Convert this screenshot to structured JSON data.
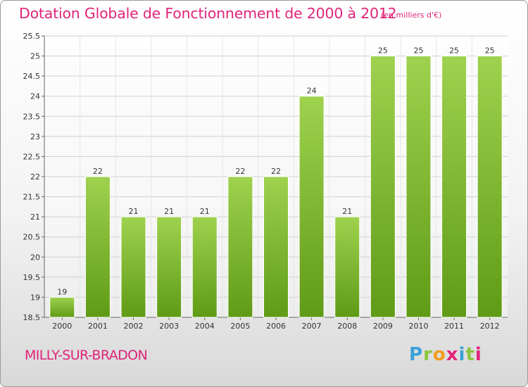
{
  "header": {
    "title": "Dotation Globale de Fonctionnement de 2000 à 2012",
    "unit_note": "(en milliers d'€)"
  },
  "footer": {
    "city": "MILLY-SUR-BRADON",
    "logo_text": "Proxiti"
  },
  "colors": {
    "title": "#e0247a",
    "bar_top": "#9fd24e",
    "bar_bottom": "#5f9b16",
    "grid": "#cfcfcf"
  },
  "chart_data": {
    "type": "bar",
    "title": "Dotation Globale de Fonctionnement de 2000 à 2012",
    "subtitle": "(en milliers d'€)",
    "xlabel": "",
    "ylabel": "",
    "categories": [
      "2000",
      "2001",
      "2002",
      "2003",
      "2004",
      "2005",
      "2006",
      "2007",
      "2008",
      "2009",
      "2010",
      "2011",
      "2012"
    ],
    "values": [
      19,
      22,
      21,
      21,
      21,
      22,
      22,
      24,
      21,
      25,
      25,
      25,
      25
    ],
    "data_labels": [
      "19",
      "22",
      "21",
      "21",
      "21",
      "22",
      "22",
      "24",
      "21",
      "25",
      "25",
      "25",
      "25"
    ],
    "ylim": [
      18.5,
      25.5
    ],
    "yticks": [
      18.5,
      19,
      19.5,
      20,
      20.5,
      21,
      21.5,
      22,
      22.5,
      23,
      23.5,
      24,
      24.5,
      25,
      25.5
    ],
    "ytick_labels": [
      "18.5",
      "19",
      "19.5",
      "20",
      "20.5",
      "21",
      "21.5",
      "22",
      "22.5",
      "23",
      "23.5",
      "24",
      "24.5",
      "25",
      "25.5"
    ],
    "grid": true,
    "legend": "none"
  }
}
